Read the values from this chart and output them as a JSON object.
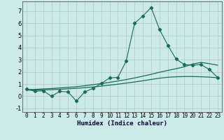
{
  "xlabel": "Humidex (Indice chaleur)",
  "bg_color": "#cceae7",
  "line_color": "#1a6b5a",
  "grid_color": "#b0c8c4",
  "x_main": [
    0,
    1,
    2,
    3,
    4,
    5,
    6,
    7,
    8,
    9,
    10,
    11,
    12,
    13,
    14,
    15,
    16,
    17,
    18,
    19,
    20,
    21,
    22,
    23
  ],
  "y_main": [
    0.6,
    0.4,
    0.45,
    0.0,
    0.4,
    0.35,
    -0.4,
    0.35,
    0.65,
    1.05,
    1.5,
    1.55,
    2.9,
    6.0,
    6.6,
    7.3,
    5.5,
    4.2,
    3.05,
    2.6,
    2.55,
    2.6,
    2.2,
    1.55
  ],
  "x_curve1": [
    0,
    1,
    2,
    3,
    4,
    5,
    6,
    7,
    8,
    9,
    10,
    11,
    12,
    13,
    14,
    15,
    16,
    17,
    18,
    19,
    20,
    21,
    22,
    23
  ],
  "y_curve1": [
    0.55,
    0.56,
    0.6,
    0.63,
    0.68,
    0.73,
    0.78,
    0.86,
    0.95,
    1.04,
    1.14,
    1.25,
    1.37,
    1.5,
    1.65,
    1.8,
    1.97,
    2.12,
    2.26,
    2.42,
    2.65,
    2.78,
    2.68,
    2.55
  ],
  "x_curve2": [
    0,
    1,
    2,
    3,
    4,
    5,
    6,
    7,
    8,
    9,
    10,
    11,
    12,
    13,
    14,
    15,
    16,
    17,
    18,
    19,
    20,
    21,
    22,
    23
  ],
  "y_curve2": [
    0.5,
    0.5,
    0.52,
    0.54,
    0.57,
    0.61,
    0.65,
    0.7,
    0.76,
    0.83,
    0.91,
    0.99,
    1.08,
    1.17,
    1.27,
    1.38,
    1.48,
    1.56,
    1.6,
    1.62,
    1.62,
    1.6,
    1.57,
    1.52
  ],
  "ylim": [
    -1.3,
    7.8
  ],
  "xlim": [
    -0.5,
    23.5
  ],
  "yticks": [
    -1,
    0,
    1,
    2,
    3,
    4,
    5,
    6,
    7
  ],
  "xticks": [
    0,
    1,
    2,
    3,
    4,
    5,
    6,
    7,
    8,
    9,
    10,
    11,
    12,
    13,
    14,
    15,
    16,
    17,
    18,
    19,
    20,
    21,
    22,
    23
  ],
  "marker": "D",
  "marker_size": 2.2,
  "lw_main": 0.8,
  "lw_smooth": 0.9
}
